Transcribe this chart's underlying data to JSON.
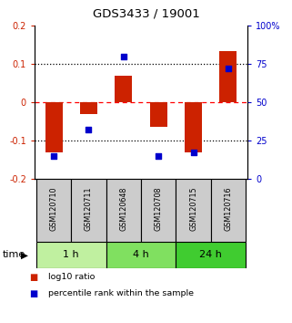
{
  "title": "GDS3433 / 19001",
  "samples": [
    "GSM120710",
    "GSM120711",
    "GSM120648",
    "GSM120708",
    "GSM120715",
    "GSM120716"
  ],
  "log10_ratio": [
    -0.13,
    -0.03,
    0.07,
    -0.065,
    -0.13,
    0.133
  ],
  "percentile_rank": [
    15,
    32,
    80,
    15,
    17,
    72
  ],
  "bar_color": "#cc2200",
  "dot_color": "#0000cc",
  "ylim_left": [
    -0.2,
    0.2
  ],
  "ylim_right": [
    0,
    100
  ],
  "yticks_left": [
    -0.2,
    -0.1,
    0.0,
    0.1,
    0.2
  ],
  "ytick_labels_left": [
    "-0.2",
    "-0.1",
    "0",
    "0.1",
    "0.2"
  ],
  "yticks_right": [
    0,
    25,
    50,
    75,
    100
  ],
  "ytick_labels_right": [
    "0",
    "25",
    "50",
    "75",
    "100%"
  ],
  "groups": [
    {
      "label": "1 h",
      "cols": [
        0,
        1
      ],
      "color": "#c0f0a0"
    },
    {
      "label": "4 h",
      "cols": [
        2,
        3
      ],
      "color": "#80e060"
    },
    {
      "label": "24 h",
      "cols": [
        4,
        5
      ],
      "color": "#40cc30"
    }
  ],
  "time_label": "time",
  "legend_items": [
    {
      "label": "log10 ratio",
      "color": "#cc2200"
    },
    {
      "label": "percentile rank within the sample",
      "color": "#0000cc"
    }
  ],
  "bar_width": 0.5,
  "bg_color": "#ffffff",
  "label_area_color": "#cccccc"
}
